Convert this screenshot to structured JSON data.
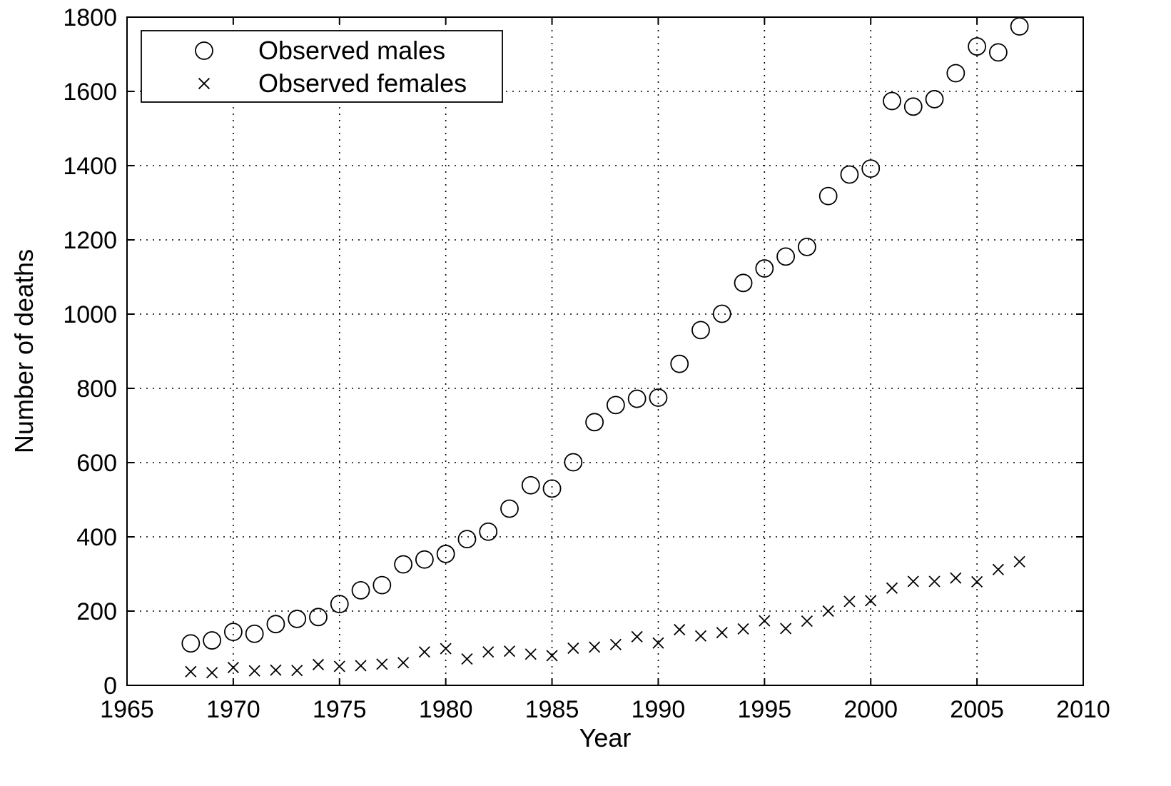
{
  "chart_data": {
    "type": "scatter",
    "title": "",
    "xlabel": "Year",
    "ylabel": "Number of deaths",
    "xlim": [
      1965,
      2010
    ],
    "ylim": [
      0,
      1800
    ],
    "xticks": [
      1965,
      1970,
      1975,
      1980,
      1985,
      1990,
      1995,
      2000,
      2005,
      2010
    ],
    "yticks": [
      0,
      200,
      400,
      600,
      800,
      1000,
      1200,
      1400,
      1600,
      1800
    ],
    "grid": true,
    "legend_position": "top-left",
    "series": [
      {
        "name": "Observed males",
        "marker": "circle",
        "color": "#000000",
        "x": [
          1968,
          1969,
          1970,
          1971,
          1972,
          1973,
          1974,
          1975,
          1976,
          1977,
          1978,
          1979,
          1980,
          1981,
          1982,
          1983,
          1984,
          1985,
          1986,
          1987,
          1988,
          1989,
          1990,
          1991,
          1992,
          1993,
          1994,
          1995,
          1996,
          1997,
          1998,
          1999,
          2000,
          2001,
          2002,
          2003,
          2004,
          2005,
          2006,
          2007
        ],
        "y": [
          113,
          121,
          144,
          139,
          165,
          179,
          184,
          219,
          256,
          270,
          326,
          339,
          354,
          394,
          414,
          476,
          539,
          530,
          601,
          709,
          755,
          772,
          775,
          866,
          957,
          1001,
          1084,
          1123,
          1155,
          1181,
          1318,
          1376,
          1392,
          1574,
          1559,
          1579,
          1649,
          1721,
          1705,
          1775
        ]
      },
      {
        "name": "Observed females",
        "marker": "cross",
        "color": "#000000",
        "x": [
          1968,
          1969,
          1970,
          1971,
          1972,
          1973,
          1974,
          1975,
          1976,
          1977,
          1978,
          1979,
          1980,
          1981,
          1982,
          1983,
          1984,
          1985,
          1986,
          1987,
          1988,
          1989,
          1990,
          1991,
          1992,
          1993,
          1994,
          1995,
          1996,
          1997,
          1998,
          1999,
          2000,
          2001,
          2002,
          2003,
          2004,
          2005,
          2006,
          2007
        ],
        "y": [
          37,
          34,
          48,
          39,
          41,
          40,
          56,
          51,
          53,
          57,
          61,
          90,
          99,
          71,
          90,
          92,
          84,
          80,
          100,
          103,
          110,
          131,
          114,
          150,
          133,
          142,
          152,
          174,
          153,
          173,
          200,
          226,
          228,
          262,
          280,
          280,
          289,
          279,
          312,
          333
        ]
      }
    ]
  }
}
